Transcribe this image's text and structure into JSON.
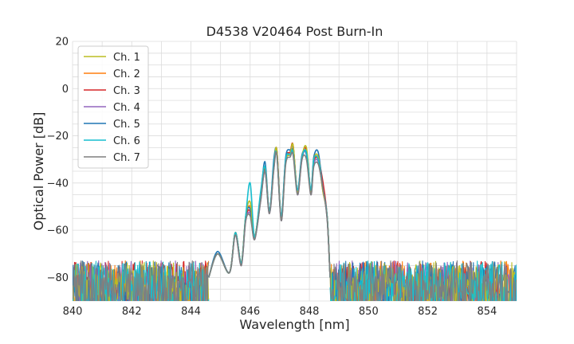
{
  "chart_data": {
    "type": "line",
    "title": "D4538 V20464 Post Burn-In",
    "xlabel": "Wavelength [nm]",
    "ylabel": "Optical Power [dB]",
    "xlim": [
      840,
      855
    ],
    "ylim": [
      -90,
      20
    ],
    "xticks": [
      840,
      842,
      844,
      846,
      848,
      850,
      852,
      854
    ],
    "yticks": [
      -80,
      -60,
      -40,
      -20,
      0,
      20
    ],
    "ytick_labels": [
      "−80",
      "−60",
      "−40",
      "−20",
      "0",
      "20"
    ],
    "grid": true,
    "legend_position": "top-left",
    "noise_floor_db": -80,
    "series": [
      {
        "name": "Ch. 1",
        "color": "#bcbd22",
        "x": [
          844.6,
          844.9,
          845.3,
          845.5,
          845.7,
          845.85,
          846.0,
          846.15,
          846.35,
          846.5,
          846.65,
          846.8,
          846.9,
          847.05,
          847.2,
          847.35,
          847.45,
          847.6,
          847.75,
          847.9,
          848.05,
          848.15,
          848.3,
          848.45,
          848.6,
          848.7
        ],
        "y": [
          -80,
          -70,
          -78,
          -61,
          -74,
          -54,
          -48,
          -63,
          -45,
          -33,
          -52,
          -33,
          -26,
          -55,
          -31,
          -28,
          -24,
          -44,
          -29,
          -25,
          -44,
          -30,
          -29,
          -43,
          -54,
          -80
        ]
      },
      {
        "name": "Ch. 2",
        "color": "#ff7f0e",
        "x": [
          844.6,
          844.9,
          845.3,
          845.5,
          845.7,
          845.85,
          846.0,
          846.15,
          846.35,
          846.5,
          846.65,
          846.8,
          846.9,
          847.05,
          847.2,
          847.35,
          847.45,
          847.6,
          847.75,
          847.9,
          848.05,
          848.15,
          848.3,
          848.45,
          848.6,
          848.7
        ],
        "y": [
          -80,
          -70,
          -78,
          -61,
          -74,
          -55,
          -50,
          -63,
          -46,
          -34,
          -52,
          -33,
          -26,
          -55,
          -30,
          -27,
          -24,
          -44,
          -29,
          -26,
          -44,
          -31,
          -30,
          -43,
          -54,
          -80
        ]
      },
      {
        "name": "Ch. 3",
        "color": "#d62728",
        "x": [
          844.6,
          844.9,
          845.3,
          845.5,
          845.7,
          845.85,
          846.0,
          846.15,
          846.35,
          846.5,
          846.65,
          846.8,
          846.9,
          847.05,
          847.2,
          847.35,
          847.45,
          847.6,
          847.75,
          847.9,
          848.05,
          848.15,
          848.3,
          848.45,
          848.6,
          848.7
        ],
        "y": [
          -80,
          -70,
          -78,
          -61,
          -74,
          -55,
          -52,
          -63,
          -47,
          -34,
          -52,
          -33,
          -26,
          -55,
          -30,
          -27,
          -24,
          -44,
          -29,
          -26,
          -44,
          -31,
          -30,
          -39,
          -54,
          -80
        ]
      },
      {
        "name": "Ch. 4",
        "color": "#9467bd",
        "x": [
          844.6,
          844.9,
          845.3,
          845.5,
          845.7,
          845.85,
          846.0,
          846.15,
          846.35,
          846.5,
          846.65,
          846.8,
          846.9,
          847.05,
          847.2,
          847.35,
          847.45,
          847.6,
          847.75,
          847.9,
          848.05,
          848.15,
          848.3,
          848.45,
          848.6,
          848.7
        ],
        "y": [
          -80,
          -70,
          -78,
          -62,
          -75,
          -56,
          -53,
          -64,
          -48,
          -35,
          -53,
          -34,
          -27,
          -56,
          -31,
          -28,
          -25,
          -45,
          -30,
          -27,
          -45,
          -32,
          -31,
          -42,
          -55,
          -80
        ]
      },
      {
        "name": "Ch. 5",
        "color": "#1f77b4",
        "x": [
          844.6,
          844.9,
          845.3,
          845.5,
          845.7,
          845.85,
          846.0,
          846.15,
          846.35,
          846.5,
          846.65,
          846.8,
          846.9,
          847.05,
          847.2,
          847.35,
          847.45,
          847.6,
          847.75,
          847.9,
          848.05,
          848.15,
          848.3,
          848.45,
          848.6,
          848.7
        ],
        "y": [
          -80,
          -69,
          -78,
          -61,
          -74,
          -54,
          -51,
          -63,
          -46,
          -31,
          -52,
          -30,
          -27,
          -54,
          -29,
          -26,
          -27,
          -43,
          -28,
          -28,
          -43,
          -29,
          -27,
          -42,
          -54,
          -80
        ]
      },
      {
        "name": "Ch. 6",
        "color": "#17becf",
        "x": [
          844.6,
          844.9,
          845.3,
          845.5,
          845.7,
          845.85,
          846.0,
          846.15,
          846.35,
          846.5,
          846.65,
          846.8,
          846.9,
          847.05,
          847.2,
          847.35,
          847.45,
          847.6,
          847.75,
          847.9,
          848.05,
          848.15,
          848.3,
          848.45,
          848.6,
          848.7
        ],
        "y": [
          -80,
          -70,
          -78,
          -61,
          -74,
          -54,
          -40,
          -63,
          -44,
          -33,
          -52,
          -32,
          -28,
          -54,
          -30,
          -28,
          -27,
          -43,
          -29,
          -27,
          -43,
          -30,
          -30,
          -42,
          -54,
          -80
        ]
      },
      {
        "name": "Ch. 7",
        "color": "#7f7f7f",
        "x": [
          844.6,
          844.9,
          845.3,
          845.5,
          845.7,
          845.85,
          846.0,
          846.15,
          846.35,
          846.5,
          846.65,
          846.8,
          846.9,
          847.05,
          847.2,
          847.35,
          847.45,
          847.6,
          847.75,
          847.9,
          848.05,
          848.15,
          848.3,
          848.45,
          848.6,
          848.7
        ],
        "y": [
          -80,
          -70,
          -78,
          -62,
          -75,
          -56,
          -54,
          -64,
          -48,
          -35,
          -53,
          -34,
          -28,
          -56,
          -32,
          -29,
          -28,
          -45,
          -30,
          -30,
          -45,
          -33,
          -32,
          -42,
          -55,
          -80
        ]
      }
    ]
  }
}
